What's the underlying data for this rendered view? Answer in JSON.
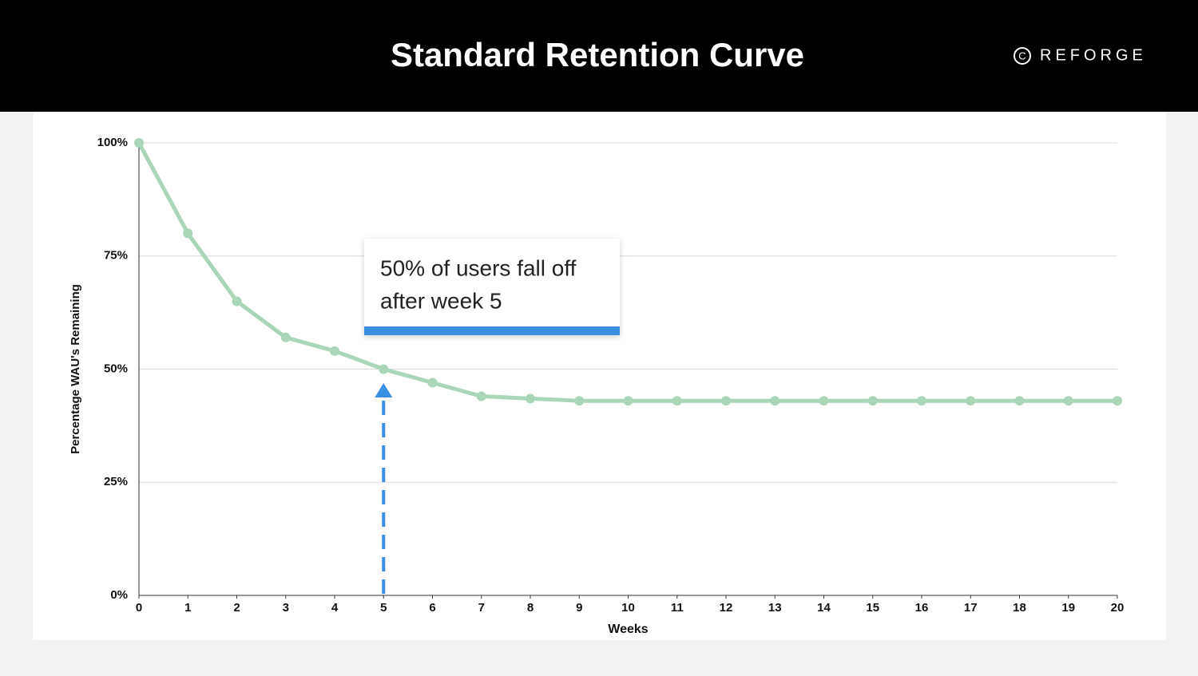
{
  "header": {
    "title": "Standard Retention Curve",
    "logo": "REFORGE"
  },
  "chart_data": {
    "type": "line",
    "x_label": "Weeks",
    "y_label": "Percentage WAU's Remaining",
    "x": [
      0,
      1,
      2,
      3,
      4,
      5,
      6,
      7,
      8,
      9,
      10,
      11,
      12,
      13,
      14,
      15,
      16,
      17,
      18,
      19,
      20
    ],
    "series": [
      {
        "name": "Retention",
        "color": "#a9d6b6",
        "values": [
          100,
          80,
          65,
          57,
          54,
          50,
          47,
          44,
          43.5,
          43,
          43,
          43,
          43,
          43,
          43,
          43,
          43,
          43,
          43,
          43,
          43
        ]
      }
    ],
    "xlim": [
      0,
      20
    ],
    "xticks": [
      0,
      1,
      2,
      3,
      4,
      5,
      6,
      7,
      8,
      9,
      10,
      11,
      12,
      13,
      14,
      15,
      16,
      17,
      18,
      19,
      20
    ],
    "ylim": [
      0,
      100
    ],
    "yticks": [
      {
        "value": 0,
        "label": "0%"
      },
      {
        "value": 25,
        "label": "25%"
      },
      {
        "value": 50,
        "label": "50%"
      },
      {
        "value": 75,
        "label": "75%"
      },
      {
        "value": 100,
        "label": "100%"
      }
    ],
    "grid": true,
    "annotation": {
      "lines": [
        "50% of users fall off",
        "after week 5"
      ],
      "x": 5,
      "color": "#3b8fe0"
    }
  }
}
